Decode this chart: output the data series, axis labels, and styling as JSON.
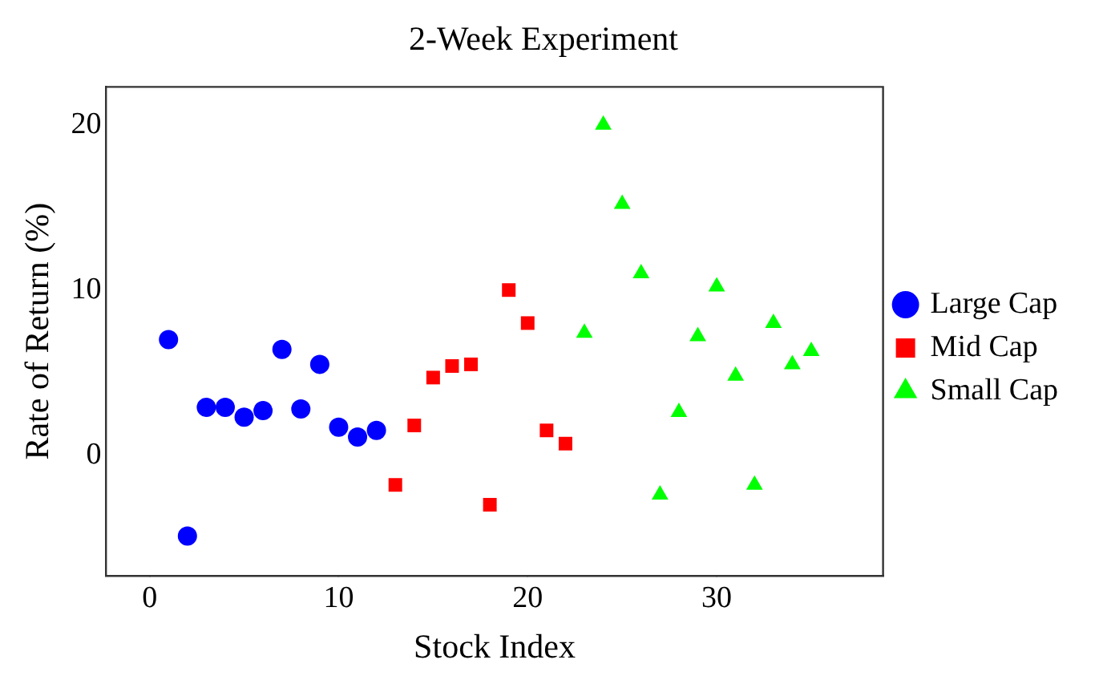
{
  "chart_data": {
    "type": "scatter",
    "title": "2-Week Experiment",
    "xlabel": "Stock Index",
    "ylabel": "Rate of Return (%)",
    "xlim": [
      -2.3,
      38.8
    ],
    "xticks": [
      0,
      10,
      20,
      30
    ],
    "ylim": [
      -7.3,
      22.3
    ],
    "yticks": [
      0,
      10,
      20
    ],
    "grid": false,
    "legend": "right",
    "series": [
      {
        "name": "Large Cap",
        "color": "#0000ff",
        "marker": "circle",
        "x": [
          1,
          2,
          3,
          4,
          5,
          6,
          7,
          8,
          9,
          10,
          11,
          12
        ],
        "values": [
          7.0,
          -4.9,
          2.9,
          2.9,
          2.3,
          2.7,
          6.4,
          2.8,
          5.5,
          1.7,
          1.1,
          1.5
        ]
      },
      {
        "name": "Mid Cap",
        "color": "#ff0000",
        "marker": "square",
        "x": [
          13,
          14,
          15,
          16,
          17,
          18,
          19,
          20,
          21,
          22
        ],
        "values": [
          -1.8,
          1.8,
          4.7,
          5.4,
          5.5,
          -3.0,
          10.0,
          8.0,
          1.5,
          0.7
        ]
      },
      {
        "name": "Small Cap",
        "color": "#00ff00",
        "marker": "triangle",
        "x": [
          23,
          24,
          25,
          26,
          27,
          28,
          29,
          30,
          31,
          32,
          33,
          34,
          35
        ],
        "values": [
          7.4,
          20.0,
          15.2,
          11.0,
          -2.4,
          2.6,
          7.2,
          10.2,
          4.8,
          -1.8,
          8.0,
          5.5,
          6.3
        ]
      }
    ]
  }
}
